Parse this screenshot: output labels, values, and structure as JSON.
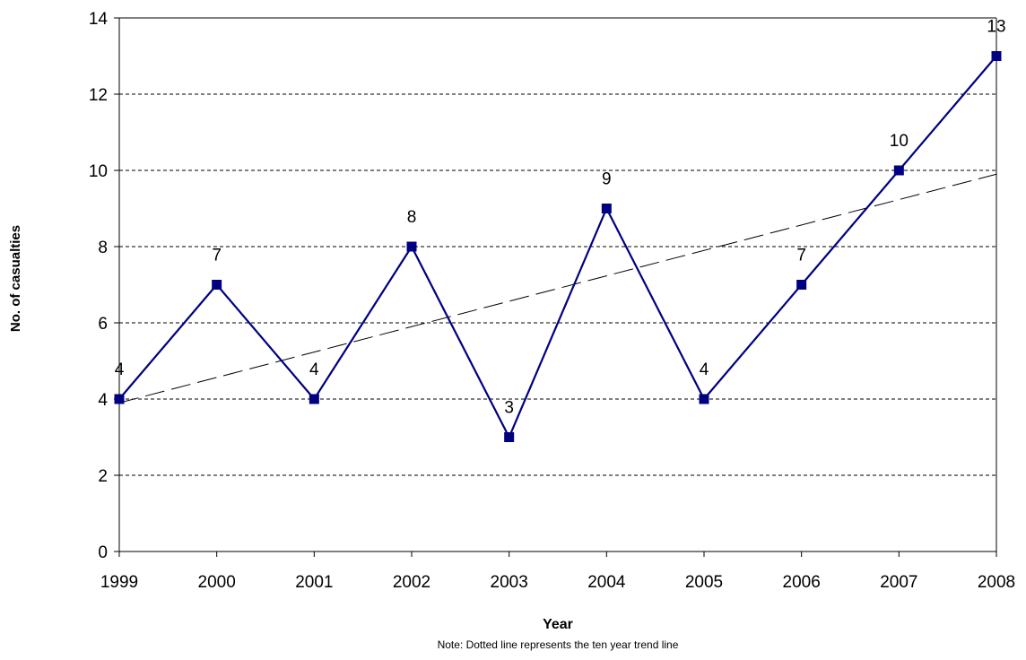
{
  "chart_data": {
    "type": "line",
    "title": "",
    "xlabel": "Year",
    "ylabel": "No. of casualties",
    "note": "Note: Dotted line represents the ten year trend line",
    "categories": [
      "1999",
      "2000",
      "2001",
      "2002",
      "2003",
      "2004",
      "2005",
      "2006",
      "2007",
      "2008"
    ],
    "series": [
      {
        "values": [
          4,
          7,
          4,
          8,
          3,
          9,
          4,
          7,
          10,
          13
        ],
        "color": "#000080",
        "marker": "square"
      }
    ],
    "trendline": {
      "style": "dashed",
      "color": "#000000",
      "start": 3.9,
      "end": 9.9
    },
    "ylim": [
      0,
      14
    ],
    "yticks": [
      0,
      2,
      4,
      6,
      8,
      10,
      12,
      14
    ],
    "grid": "horizontal-dashed",
    "data_labels": true
  }
}
